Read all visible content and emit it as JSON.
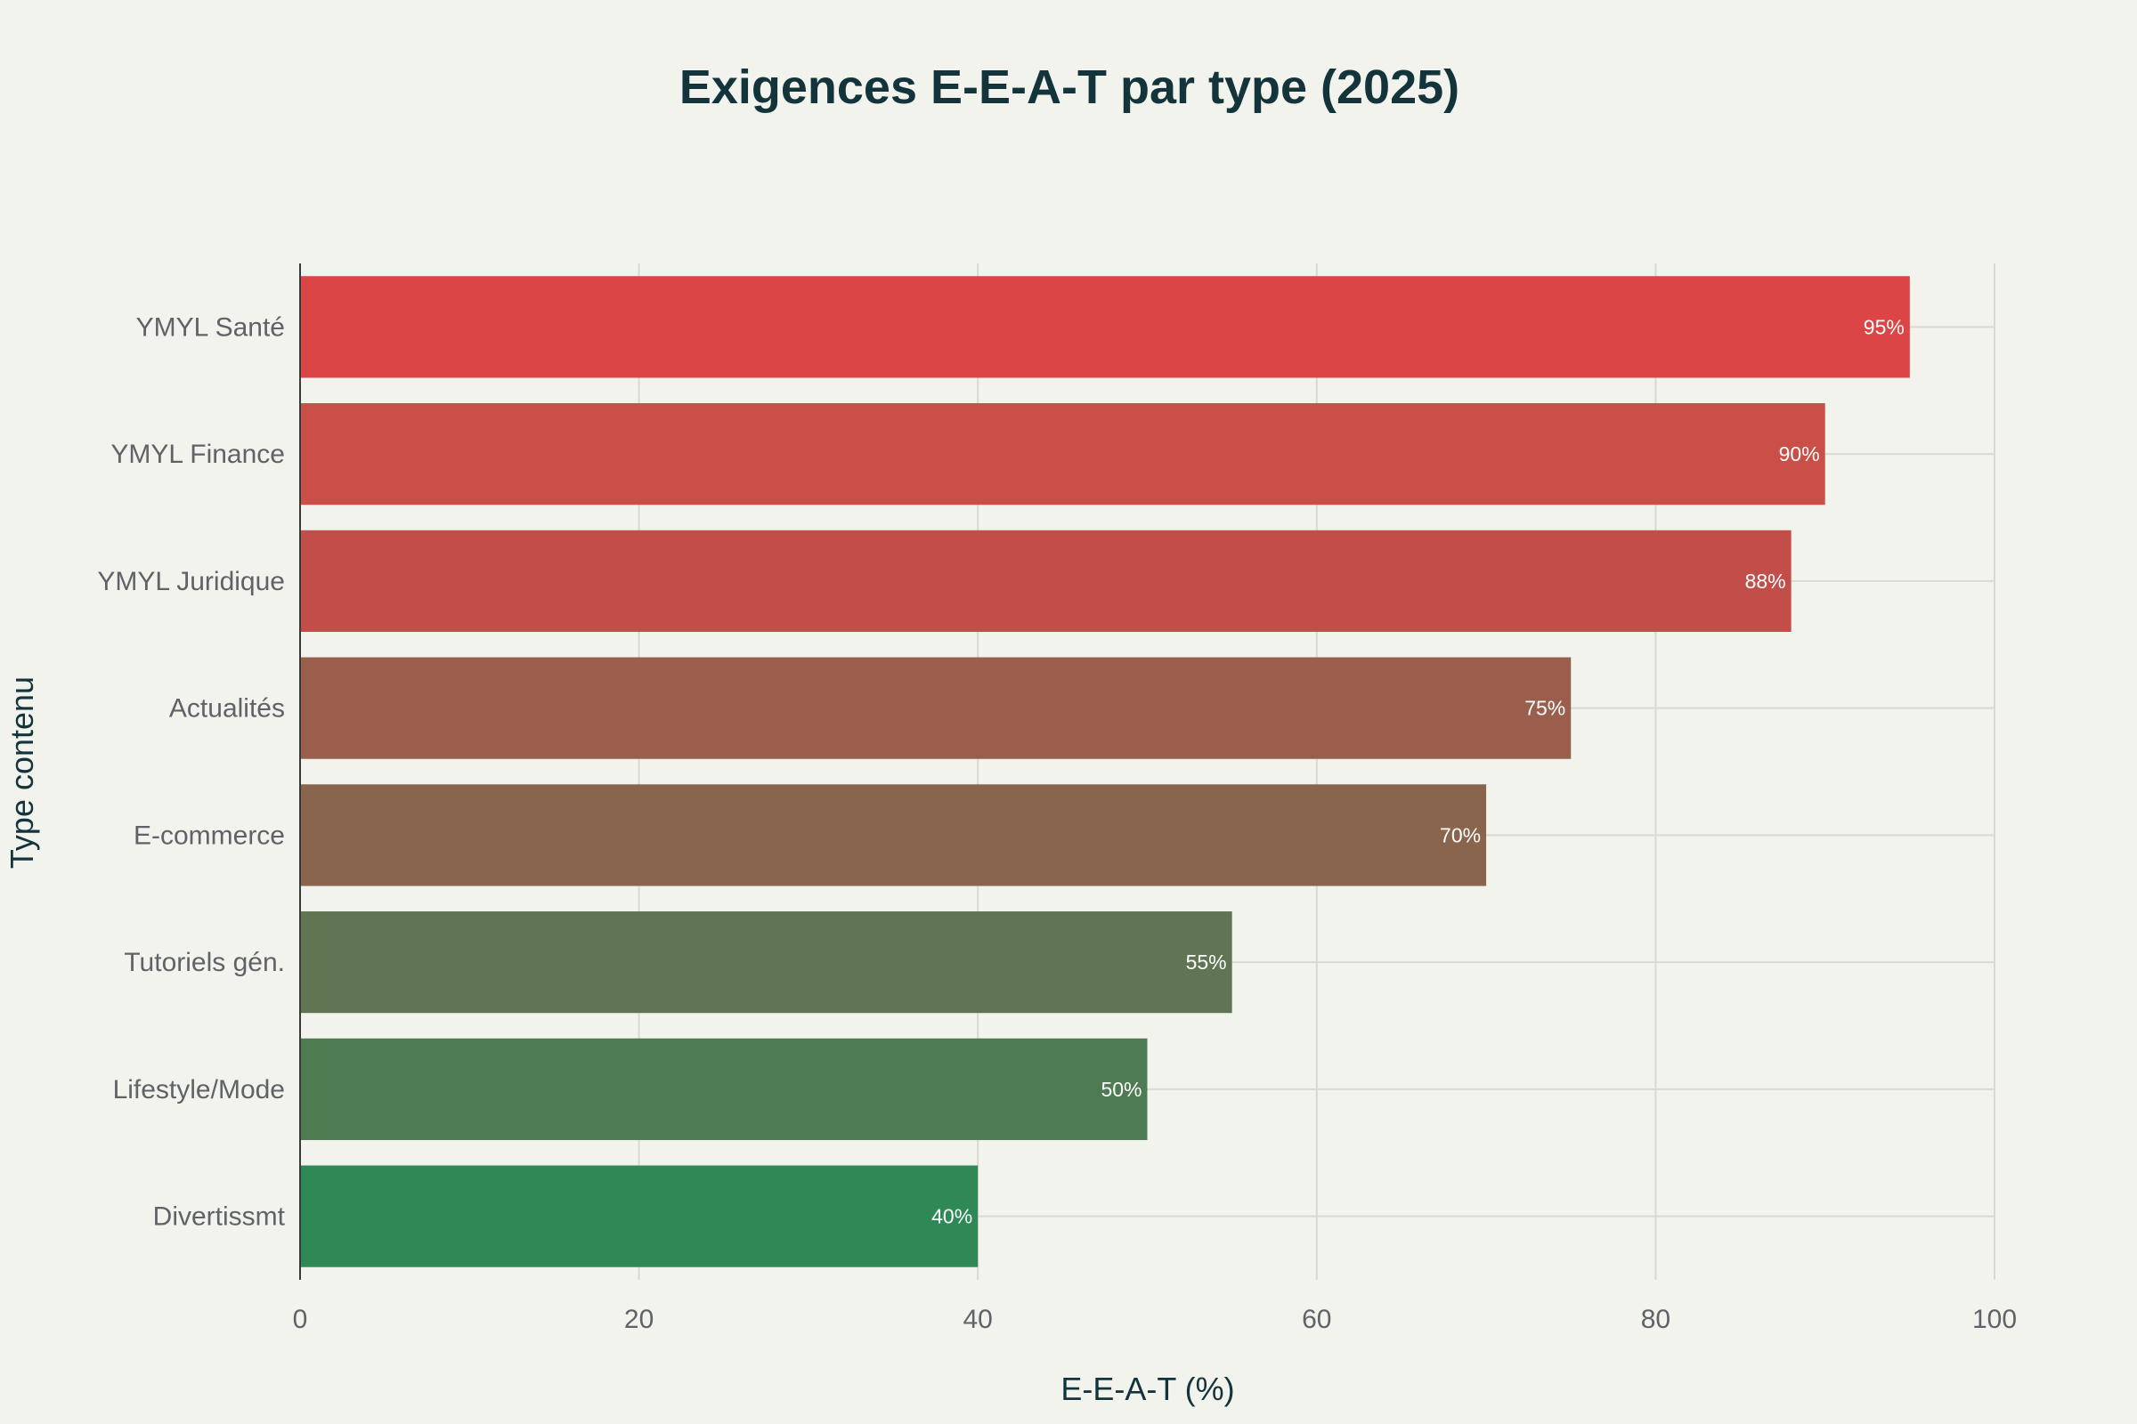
{
  "chart_data": {
    "type": "bar",
    "orientation": "horizontal",
    "title": "Exigences E-E-A-T par type (2025)",
    "xlabel": "E-E-A-T (%)",
    "ylabel": "Type contenu",
    "xlim": [
      0,
      100
    ],
    "xticks": [
      "0",
      "20",
      "40",
      "60",
      "80",
      "100"
    ],
    "grid": true,
    "legend": "none",
    "categories": [
      "YMYL Santé",
      "YMYL Finance",
      "YMYL Juridique",
      "Actualités",
      "E-commerce",
      "Tutoriels gén.",
      "Lifestyle/Mode",
      "Divertissmt"
    ],
    "values": [
      95,
      90,
      88,
      75,
      70,
      55,
      50,
      40
    ],
    "data_labels": [
      "95%",
      "90%",
      "88%",
      "75%",
      "70%",
      "55%",
      "50%",
      "40%"
    ],
    "colors": [
      "#db4545",
      "#c94f48",
      "#c24e4a",
      "#995f4c",
      "#8a654d",
      "#5f7553",
      "#4f7b53",
      "#2e8957"
    ]
  }
}
